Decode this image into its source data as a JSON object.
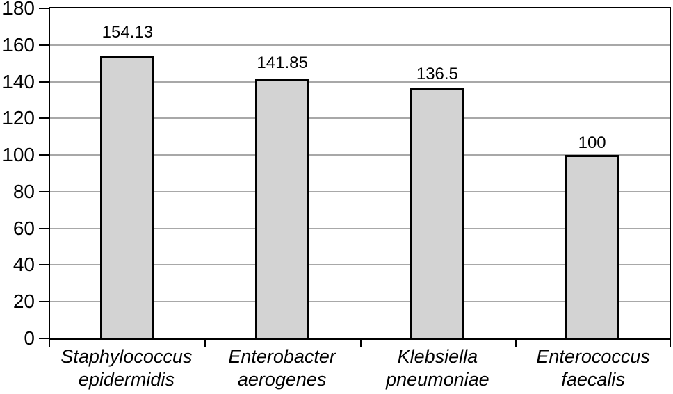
{
  "chart_data": {
    "type": "bar",
    "title": "",
    "xlabel": "",
    "ylabel": "",
    "categories": [
      "Staphylococcus epidermidis",
      "Enterobacter aerogenes",
      "Klebsiella pneumoniae",
      "Enterococcus faecalis"
    ],
    "category_lines": [
      [
        "Staphylococcus",
        "epidermidis"
      ],
      [
        "Enterobacter",
        "aerogenes"
      ],
      [
        "Klebsiella",
        "pneumoniae"
      ],
      [
        "Enterococcus",
        "faecalis"
      ]
    ],
    "values": [
      154.13,
      141.85,
      136.5,
      100
    ],
    "value_labels": [
      "154.13",
      "141.85",
      "136.5",
      "100"
    ],
    "ylim": [
      0,
      180
    ],
    "ytick_step": 20,
    "yticks": [
      0,
      20,
      40,
      60,
      80,
      100,
      120,
      140,
      160,
      180
    ],
    "grid": true,
    "legend": false,
    "category_labels_italic": true,
    "colors": {
      "bar_fill": "#d3d3d3",
      "bar_border": "#000000",
      "gridline": "#a8a8a8",
      "axis": "#000000",
      "text": "#000000",
      "background": "#ffffff"
    }
  }
}
